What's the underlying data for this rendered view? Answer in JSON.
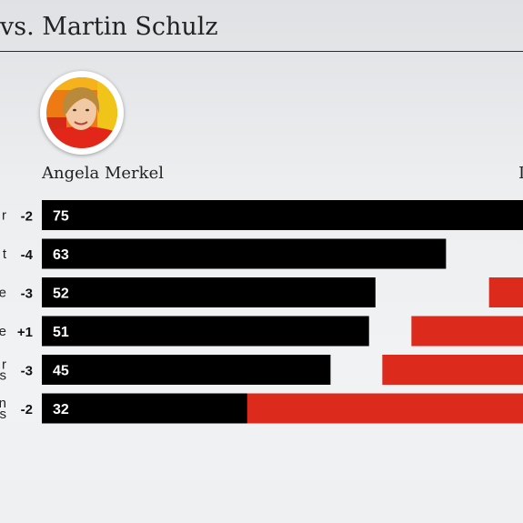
{
  "header": {
    "title": "vs. Martin Schulz"
  },
  "candidates": {
    "a": {
      "name": "Angela Merkel",
      "photo_icon": "angela-merkel-portrait"
    },
    "b": {
      "name_visible_fragment": "I"
    }
  },
  "colors": {
    "merkel": "#000000",
    "schulz": "#dc2a1c",
    "bar_text": "#ffffff"
  },
  "chart_data": {
    "type": "bar",
    "orientation": "horizontal",
    "title": "vs. Martin Schulz",
    "categories": [
      "r",
      "t",
      "e",
      "e",
      "r\ns",
      "n\ns"
    ],
    "changes": [
      "-2",
      "-4",
      "-3",
      "+1",
      "-3",
      "-2"
    ],
    "series": [
      {
        "name": "Angela Merkel",
        "color": "#000000",
        "values": [
          75,
          63,
          52,
          51,
          45,
          32
        ]
      },
      {
        "name": "",
        "color": "#dc2a1c",
        "values": [
          null,
          null,
          7,
          23,
          29,
          58
        ]
      }
    ],
    "xlim": [
      0,
      75
    ],
    "grid": false
  }
}
